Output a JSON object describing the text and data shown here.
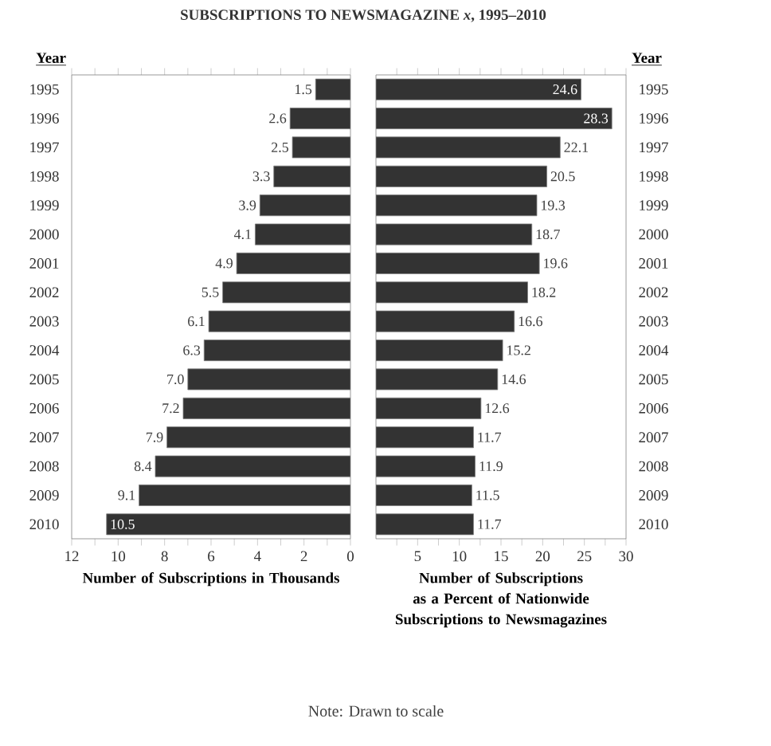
{
  "chart_data": [
    {
      "type": "bar",
      "orientation": "horizontal",
      "title": "SUBSCRIPTIONS TO NEWSMAGAZINE *x*, 1995–2010",
      "ylabel": "Year",
      "xlabel": "Number of Subscriptions in Thousands",
      "annotations": [
        "Note: Drawn to scale"
      ],
      "categories": [
        "1995",
        "1996",
        "1997",
        "1998",
        "1999",
        "2000",
        "2001",
        "2002",
        "2003",
        "2004",
        "2005",
        "2006",
        "2007",
        "2008",
        "2009",
        "2010"
      ],
      "values": [
        1.5,
        2.6,
        2.5,
        3.3,
        3.9,
        4.1,
        4.9,
        5.5,
        6.1,
        6.3,
        7.0,
        7.2,
        7.9,
        8.4,
        9.1,
        10.5
      ],
      "value_labels": [
        "1.5",
        "2.6",
        "2.5",
        "3.3",
        "3.9",
        "4.1",
        "4.9",
        "5.5",
        "6.1",
        "6.3",
        "7.0",
        "7.2",
        "7.9",
        "8.4",
        "9.1",
        "10.5"
      ],
      "color": "#333333",
      "xlim": [
        12,
        0
      ],
      "xticks": [
        12,
        {
          "value": 11,
          "label": null
        },
        10,
        {
          "value": 9,
          "label": null
        },
        8,
        {
          "value": 7,
          "label": null
        },
        6,
        {
          "value": 5,
          "label": null
        },
        4,
        {
          "value": 3,
          "label": null
        },
        2,
        {
          "value": 1,
          "label": null
        },
        0
      ]
    },
    {
      "type": "bar",
      "orientation": "horizontal",
      "ylabel": "Year",
      "xlabel": "Number of Subscriptions as a Percent of Nationwide Subscriptions to Newsmagazines",
      "categories": [
        "1995",
        "1996",
        "1997",
        "1998",
        "1999",
        "2000",
        "2001",
        "2002",
        "2003",
        "2004",
        "2005",
        "2006",
        "2007",
        "2008",
        "2009",
        "2010"
      ],
      "values": [
        24.6,
        28.3,
        22.1,
        20.5,
        19.3,
        18.7,
        19.6,
        18.2,
        16.6,
        15.2,
        14.6,
        12.6,
        11.7,
        11.9,
        11.5,
        11.7
      ],
      "value_labels": [
        "24.6",
        "28.3",
        "22.1",
        "20.5",
        "19.3",
        "18.7",
        "19.6",
        "18.2",
        "16.6",
        "15.2",
        "14.6",
        "12.6",
        "11.7",
        "11.9",
        "11.5",
        "11.7"
      ],
      "color": "#333333",
      "xlim": [
        0,
        30
      ],
      "xticks": [
        {
          "value": 2.5,
          "label": null
        },
        5,
        {
          "value": 7.5,
          "label": null
        },
        10,
        {
          "value": 12.5,
          "label": null
        },
        15,
        {
          "value": 17.5,
          "label": null
        },
        20,
        {
          "value": 22.5,
          "label": null
        },
        25,
        {
          "value": 27.5,
          "label": null
        },
        30
      ]
    }
  ]
}
